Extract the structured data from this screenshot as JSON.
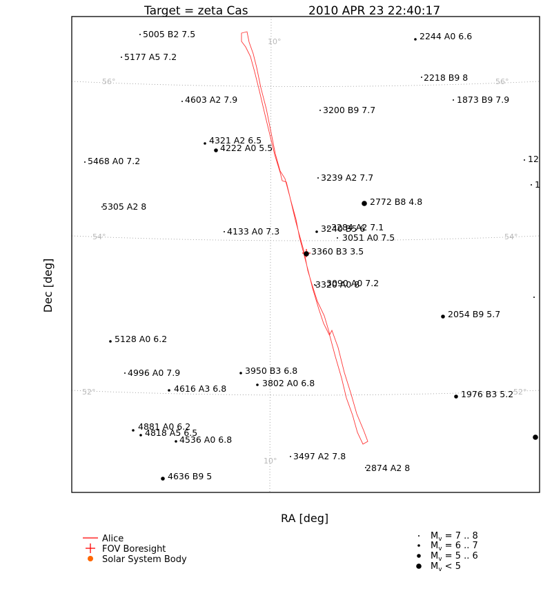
{
  "chart_data": {
    "type": "scatter",
    "title_target": "Target = zeta Cas",
    "title_time": "2010 APR 23 22:40:17",
    "xlabel": "RA [deg]",
    "ylabel": "Dec [deg]",
    "grid": true,
    "grid_labels": {
      "ra_top": "10°",
      "ra_bottom": "10°",
      "dec_56": "56°",
      "dec_54": "54°",
      "dec_52": "52°"
    },
    "stars": [
      {
        "label": "5005 B2 7.5",
        "mag": 7.5
      },
      {
        "label": "5177 A5 7.2",
        "mag": 7.2
      },
      {
        "label": "2244 A0 6.6",
        "mag": 6.6
      },
      {
        "label": "2218 B9 8",
        "mag": 8
      },
      {
        "label": "4603 A2 7.9",
        "mag": 7.9
      },
      {
        "label": "3200 B9 7.7",
        "mag": 7.7
      },
      {
        "label": "1873 B9 7.9",
        "mag": 7.9
      },
      {
        "label": "4321 A2 6.5",
        "mag": 6.5
      },
      {
        "label": "4222 A0 5.5",
        "mag": 5.5
      },
      {
        "label": "5468 A0 7.2",
        "mag": 7.2
      },
      {
        "label": "12",
        "mag": 7.5
      },
      {
        "label": "3239 A2 7.7",
        "mag": 7.7
      },
      {
        "label": "1",
        "mag": 7.5
      },
      {
        "label": "2772 B8 4.8",
        "mag": 4.8
      },
      {
        "label": "5305 A2 8",
        "mag": 8
      },
      {
        "label": "4133 A0 7.3",
        "mag": 7.3
      },
      {
        "label": "3284 A2 7.1",
        "mag": 7.1
      },
      {
        "label": "3240 B5 6",
        "mag": 6.0
      },
      {
        "label": "3051 A0 7.5",
        "mag": 7.5
      },
      {
        "label": "3360 B3 3.5",
        "mag": 3.5
      },
      {
        "label": "3090 A0 7.2",
        "mag": 7.2
      },
      {
        "label": "3320 A0 8",
        "mag": 8
      },
      {
        "label": "2054 B9 5.7",
        "mag": 5.7
      },
      {
        "label": "5128 A0 6.2",
        "mag": 6.2
      },
      {
        "label": "4996 A0 7.9",
        "mag": 7.9
      },
      {
        "label": "3950 B3 6.8",
        "mag": 6.8
      },
      {
        "label": "3802 A0 6.8",
        "mag": 6.8
      },
      {
        "label": "4616 A3 6.8",
        "mag": 6.8
      },
      {
        "label": "1976 B3 5.2",
        "mag": 5.2
      },
      {
        "label": "4881 A0 6.2",
        "mag": 6.2
      },
      {
        "label": "4818 A5 6.5",
        "mag": 6.5
      },
      {
        "label": "4536 A0 6.8",
        "mag": 6.8
      },
      {
        "label": "3497 A2 7.8",
        "mag": 7.8
      },
      {
        "label": "2874 A2 8",
        "mag": 8
      },
      {
        "label": "4636 B9 5",
        "mag": 5.0
      },
      {
        "label": "",
        "mag": 4.8
      },
      {
        "label": "",
        "mag": 7.9
      }
    ],
    "legend": [
      {
        "label": "Alice",
        "symbol": "line",
        "color": "#ff6666"
      },
      {
        "label": "FOV Boresight",
        "symbol": "cross",
        "color": "#ff0000"
      },
      {
        "label": "Solar System Body",
        "symbol": "dot",
        "color": "#ff6600"
      }
    ],
    "magnitude_legend": [
      {
        "range": "7 .. 8"
      },
      {
        "range": "6 .. 7"
      },
      {
        "range": "5 .. 6"
      },
      {
        "range": "< 5"
      }
    ],
    "colors": {
      "fov": "#ff3333",
      "grid": "#999999",
      "grid_label": "#b8b8b8"
    }
  }
}
